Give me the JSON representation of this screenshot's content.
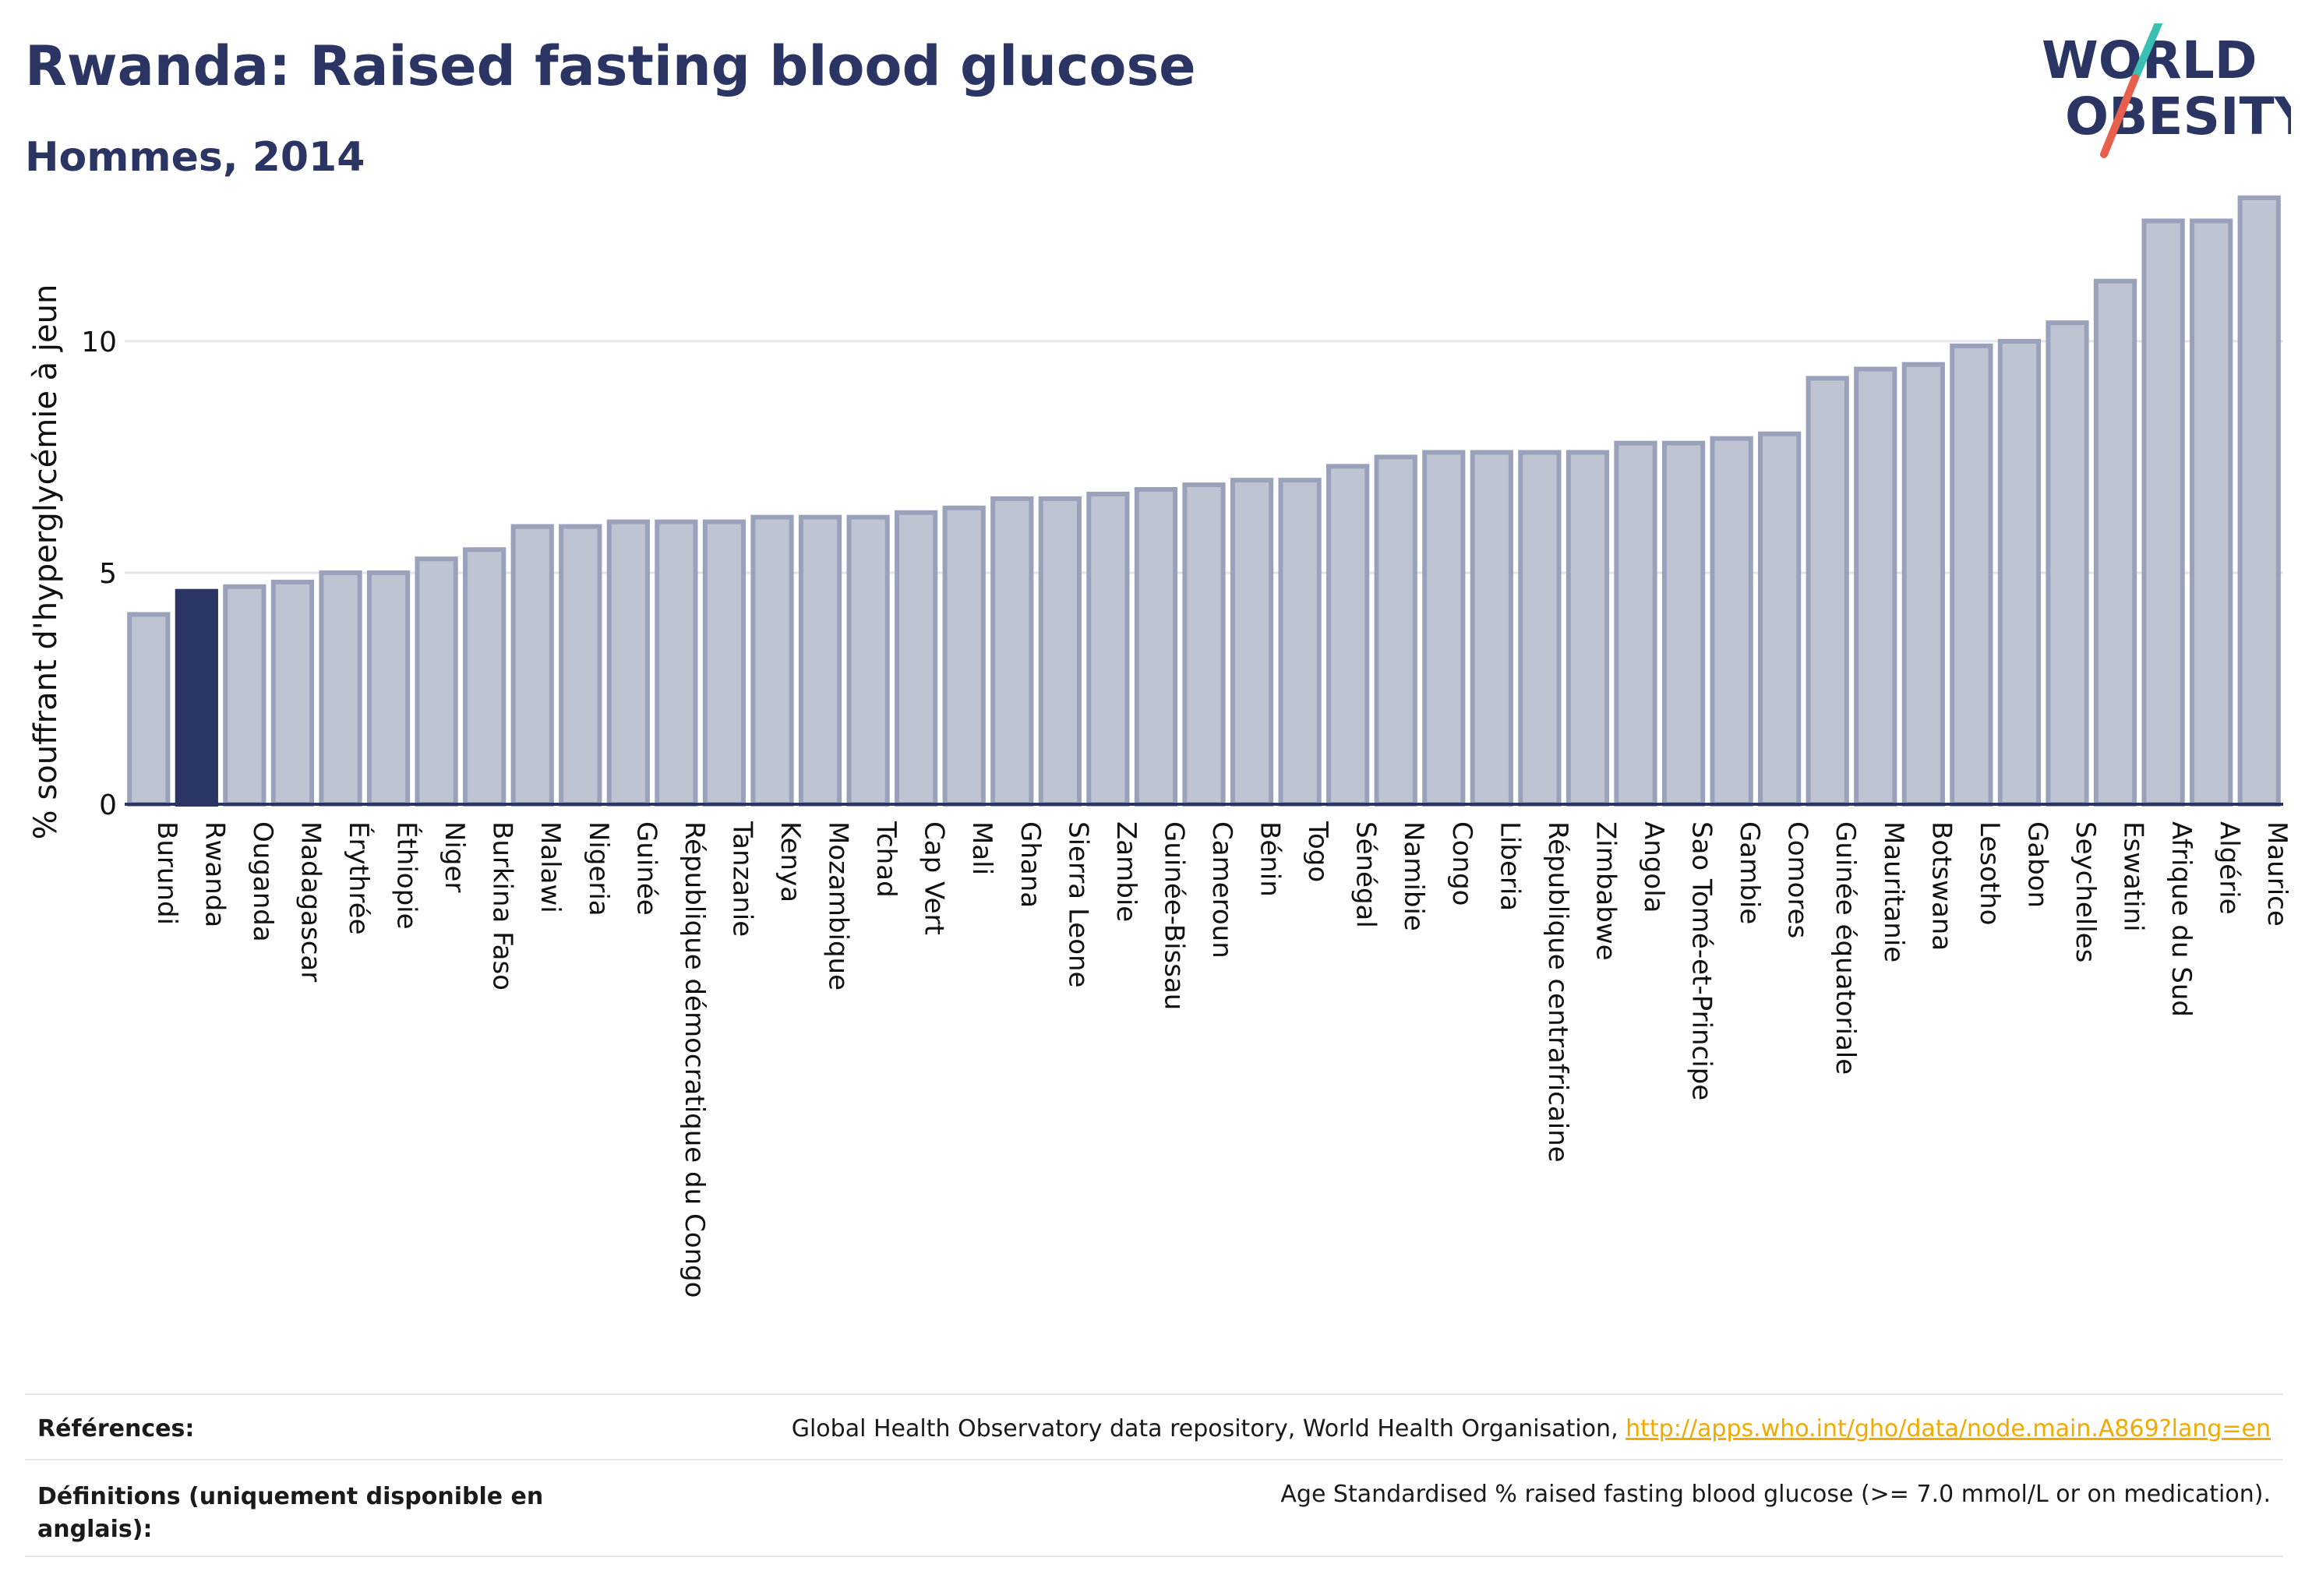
{
  "header": {
    "title": "Rwanda: Raised fasting blood glucose",
    "subtitle": "Hommes, 2014"
  },
  "logo": {
    "line1": "WORLD",
    "line2": "OBESITY",
    "text_color": "#2b3563",
    "slash_colors": [
      "#3bbfb4",
      "#e8604c"
    ]
  },
  "chart_data": {
    "type": "bar",
    "title": "Rwanda: Raised fasting blood glucose",
    "subtitle": "Hommes, 2014",
    "xlabel": "",
    "ylabel": "% souffrant d'hyperglycémie à jeun",
    "ylim": [
      0,
      13.5
    ],
    "yticks": [
      0,
      5,
      10
    ],
    "grid": true,
    "legend": "none",
    "highlight": "Rwanda",
    "colors": {
      "default_fill": "#bfc4d3",
      "default_stroke": "#9aa1bb",
      "highlight_fill": "#2b3563",
      "axis": "#2b3563"
    },
    "categories": [
      "Burundi",
      "Rwanda",
      "Ouganda",
      "Madagascar",
      "Érythrée",
      "Éthiopie",
      "Niger",
      "Burkina Faso",
      "Malawi",
      "Nigeria",
      "Guinée",
      "République démocratique du Congo",
      "Tanzanie",
      "Kenya",
      "Mozambique",
      "Tchad",
      "Cap Vert",
      "Mali",
      "Ghana",
      "Sierra Leone",
      "Zambie",
      "Guinée-Bissau",
      "Cameroun",
      "Bénin",
      "Togo",
      "Sénégal",
      "Namibie",
      "Congo",
      "Liberia",
      "République centrafricaine",
      "Zimbabwe",
      "Angola",
      "Sao Tomé-et-Principe",
      "Gambie",
      "Comores",
      "Guinée équatoriale",
      "Mauritanie",
      "Botswana",
      "Lesotho",
      "Gabon",
      "Seychelles",
      "Eswatini",
      "Afrique du Sud",
      "Algérie",
      "Maurice"
    ],
    "values": [
      4.1,
      4.6,
      4.7,
      4.8,
      5.0,
      5.0,
      5.3,
      5.5,
      6.0,
      6.0,
      6.1,
      6.1,
      6.1,
      6.2,
      6.2,
      6.2,
      6.3,
      6.4,
      6.6,
      6.6,
      6.7,
      6.8,
      6.9,
      7.0,
      7.0,
      7.3,
      7.5,
      7.6,
      7.6,
      7.6,
      7.6,
      7.8,
      7.8,
      7.9,
      8.0,
      9.2,
      9.4,
      9.5,
      9.9,
      10.0,
      10.4,
      11.3,
      12.6,
      12.6,
      13.1
    ]
  },
  "footer": {
    "references_label": "Références:",
    "references_text": "Global Health Observatory data repository, World Health Organisation, ",
    "references_link": "http://apps.who.int/gho/data/node.main.A869?lang=en",
    "definitions_label": "Définitions (uniquement disponible en anglais):",
    "definitions_text": "Age Standardised % raised fasting blood glucose (>= 7.0 mmol/L or on medication)."
  }
}
